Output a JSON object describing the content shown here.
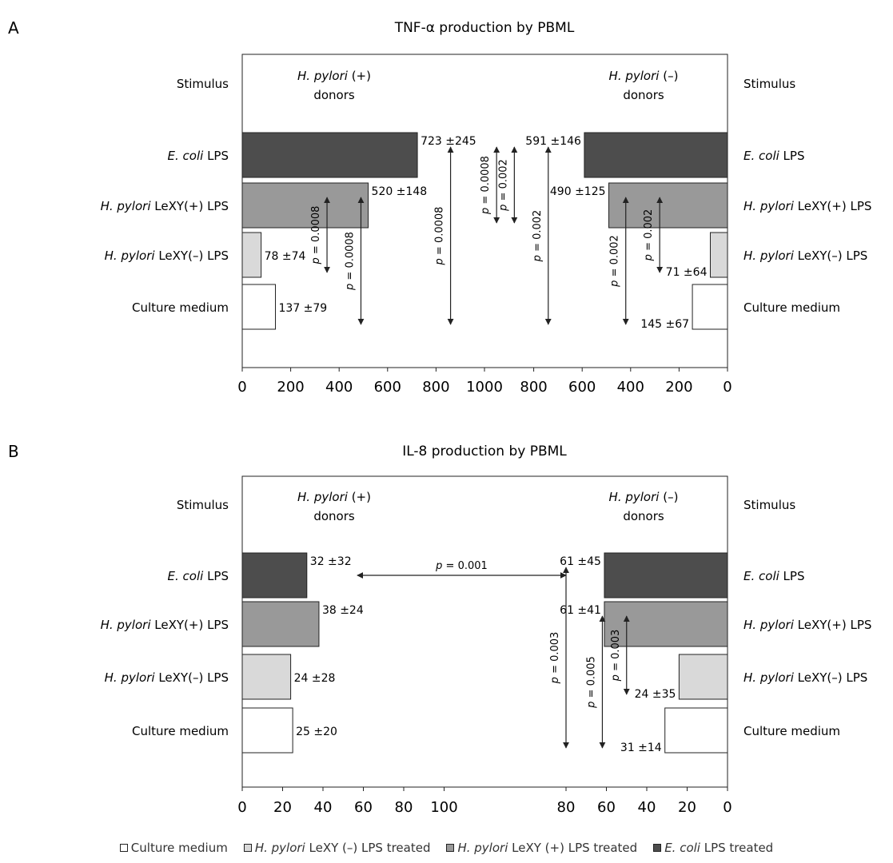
{
  "chart_data": [
    {
      "type": "bar",
      "panel": "A",
      "title": "TNF-α production by PBML",
      "stimulus_label": "Stimulus",
      "left_group": {
        "line1": "H. pylori (+)",
        "line2": "donors"
      },
      "right_group": {
        "line1": "H. pylori (–)",
        "line2": "donors"
      },
      "categories": [
        {
          "italic": "E. coli",
          "rest": " LPS"
        },
        {
          "italic": "H. pylori",
          "rest": " LeXY(+) LPS"
        },
        {
          "italic": "H. pylori",
          "rest": " LeXY(–) LPS"
        },
        {
          "italic": "",
          "rest": "Culture medium"
        }
      ],
      "colors": [
        "#4d4d4d",
        "#999999",
        "#d9d9d9",
        "#ffffff"
      ],
      "left_values": [
        723,
        520,
        78,
        137
      ],
      "left_labels": [
        "723 ±245",
        "520 ±148",
        "78 ±74",
        "137 ±79"
      ],
      "right_values": [
        591,
        490,
        71,
        145
      ],
      "right_labels": [
        "591 ±146",
        "490 ±125",
        "71 ±64",
        "145 ±67"
      ],
      "xlim": [
        0,
        1000
      ],
      "left_ticks": [
        "0",
        "200",
        "400",
        "600",
        "800",
        "1000"
      ],
      "right_ticks": [
        "800",
        "600",
        "400",
        "200",
        "0"
      ],
      "p_values": [
        {
          "label": "p = 0.0008",
          "side": "left",
          "value": 350,
          "from": 1,
          "to": 2
        },
        {
          "label": "p = 0.0008",
          "side": "left",
          "value": 490,
          "from": 1,
          "to": 3
        },
        {
          "label": "p = 0.0008",
          "side": "left",
          "value": 860,
          "from": 0,
          "to": 3
        },
        {
          "label": "p = 0.0008",
          "side": "left",
          "value": 1050,
          "from": 0,
          "to": 1
        },
        {
          "label": "p = 0.002",
          "side": "right",
          "value": 880,
          "from": 0,
          "to": 1
        },
        {
          "label": "p = 0.002",
          "side": "right",
          "value": 740,
          "from": 0,
          "to": 3
        },
        {
          "label": "p = 0.002",
          "side": "right",
          "value": 420,
          "from": 1,
          "to": 3
        },
        {
          "label": "p = 0.002",
          "side": "right",
          "value": 280,
          "from": 1,
          "to": 2
        }
      ]
    },
    {
      "type": "bar",
      "panel": "B",
      "title": "IL-8 production by PBML",
      "stimulus_label": "Stimulus",
      "left_group": {
        "line1": "H. pylori (+)",
        "line2": "donors"
      },
      "right_group": {
        "line1": "H. pylori (–)",
        "line2": "donors"
      },
      "categories": [
        {
          "italic": "E. coli",
          "rest": " LPS"
        },
        {
          "italic": "H. pylori",
          "rest": " LeXY(+) LPS"
        },
        {
          "italic": "H. pylori",
          "rest": " LeXY(–) LPS"
        },
        {
          "italic": "",
          "rest": "Culture medium"
        }
      ],
      "colors": [
        "#4d4d4d",
        "#999999",
        "#d9d9d9",
        "#ffffff"
      ],
      "left_values": [
        32,
        38,
        24,
        25
      ],
      "left_labels": [
        "32 ±32",
        "38 ±24",
        "24 ±28",
        "25 ±20"
      ],
      "right_values": [
        61,
        61,
        24,
        31
      ],
      "right_labels": [
        "61 ±45",
        "61 ±41",
        "24 ±35",
        "31 ±14"
      ],
      "xlim": [
        0,
        120
      ],
      "left_ticks": [
        "0",
        "20",
        "40",
        "60",
        "80",
        "100"
      ],
      "right_ticks": [
        "80",
        "60",
        "40",
        "20",
        "0"
      ],
      "p_values": [
        {
          "label": "p = 0.001",
          "type": "horizontal",
          "from_left": 57,
          "to_right": 80,
          "row": 0
        },
        {
          "label": "p = 0.003",
          "side": "right",
          "value": 80,
          "from": 0,
          "to": 3
        },
        {
          "label": "p = 0.005",
          "side": "right",
          "value": 62,
          "from": 1,
          "to": 3
        },
        {
          "label": "p = 0.003",
          "side": "right",
          "value": 50,
          "from": 1,
          "to": 2
        }
      ]
    }
  ],
  "legend": [
    {
      "italic": "",
      "rest": "Culture medium",
      "color": "#ffffff"
    },
    {
      "italic": "H. pylori",
      "rest": " LeXY (–) LPS treated",
      "color": "#d9d9d9"
    },
    {
      "italic": "H. pylori",
      "rest": " LeXY (+) LPS treated",
      "color": "#999999"
    },
    {
      "italic": "E. coli",
      "rest": " LPS treated",
      "color": "#4d4d4d"
    }
  ]
}
